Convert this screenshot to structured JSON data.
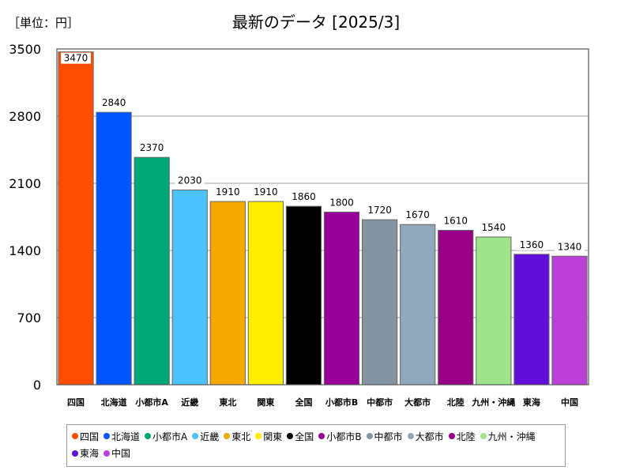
{
  "unit_label": "［単位：円］",
  "chart_data": {
    "type": "bar",
    "title": "最新のデータ [2025/3]",
    "xlabel": "",
    "ylabel": "",
    "ylim": [
      0,
      3500
    ],
    "yticks": [
      0,
      700,
      1400,
      2100,
      2800,
      3500
    ],
    "grid": true,
    "legend_position": "bottom",
    "categories": [
      "四国",
      "北海道",
      "小都市A",
      "近畿",
      "東北",
      "関東",
      "全国",
      "小都市B",
      "中都市",
      "大都市",
      "北陸",
      "九州・沖縄",
      "東海",
      "中国"
    ],
    "values": [
      3470,
      2840,
      2370,
      2030,
      1910,
      1910,
      1860,
      1800,
      1720,
      1670,
      1610,
      1540,
      1360,
      1340
    ],
    "colors": [
      "#ff4d00",
      "#0055ff",
      "#00a878",
      "#4cc3ff",
      "#f5a800",
      "#ffee00",
      "#000000",
      "#990099",
      "#8494a0",
      "#90a8bc",
      "#990088",
      "#9fe38a",
      "#6010d8",
      "#bb40d8"
    ]
  }
}
